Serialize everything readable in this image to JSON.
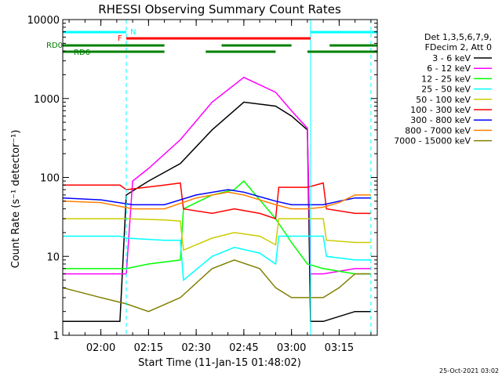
{
  "chart_data": {
    "type": "line",
    "title": "RHESSI Observing Summary Count Rates",
    "xlabel": "Start Time (11-Jan-15 01:48:02)",
    "ylabel": "Count Rate (s⁻¹ detector⁻¹)",
    "x_range": [
      "01:48",
      "03:27"
    ],
    "y_scale": "log",
    "ylim": [
      1,
      10000
    ],
    "y_ticks": [
      1,
      10,
      100,
      1000,
      10000
    ],
    "y_tick_labels": [
      "1",
      "10",
      "100",
      "1000",
      "10000"
    ],
    "x_ticks": [
      "02:00",
      "02:15",
      "02:30",
      "02:45",
      "03:00",
      "03:15"
    ],
    "grid": false,
    "legend_position": "right",
    "legend_header": [
      "Det 1,3,5,6,7,9,",
      "FDecim 2, Att 0"
    ],
    "timestamp": "25-Oct-2021 03:02",
    "series": [
      {
        "name": "3 - 6 keV",
        "color": "#000000",
        "x": [
          "01:48",
          "02:00",
          "02:06",
          "02:08",
          "02:15",
          "02:25",
          "02:35",
          "02:45",
          "02:55",
          "03:00",
          "03:05",
          "03:06",
          "03:10",
          "03:20",
          "03:25"
        ],
        "y": [
          1.5,
          1.5,
          1.5,
          60,
          90,
          150,
          400,
          900,
          800,
          600,
          400,
          1.5,
          1.5,
          2,
          2
        ]
      },
      {
        "name": "6 - 12 keV",
        "color": "#ff00ff",
        "x": [
          "01:48",
          "02:00",
          "02:08",
          "02:10",
          "02:15",
          "02:25",
          "02:35",
          "02:45",
          "02:55",
          "03:00",
          "03:05",
          "03:06",
          "03:10",
          "03:20",
          "03:25"
        ],
        "y": [
          6,
          6,
          6,
          90,
          130,
          300,
          900,
          1850,
          1200,
          700,
          420,
          6,
          6,
          7,
          7
        ]
      },
      {
        "name": "12 - 25 keV",
        "color": "#00ff00",
        "x": [
          "01:48",
          "02:00",
          "02:08",
          "02:15",
          "02:25",
          "02:26",
          "02:35",
          "02:42",
          "02:45",
          "02:55",
          "03:00",
          "03:05",
          "03:10",
          "03:20",
          "03:25"
        ],
        "y": [
          7,
          7,
          7,
          8,
          9,
          40,
          60,
          70,
          90,
          30,
          15,
          8,
          7,
          6,
          6
        ]
      },
      {
        "name": "25 - 50 keV",
        "color": "#00ffff",
        "x": [
          "01:48",
          "02:00",
          "02:06",
          "02:08",
          "02:20",
          "02:25",
          "02:26",
          "02:35",
          "02:42",
          "02:50",
          "02:55",
          "02:56",
          "03:00",
          "03:10",
          "03:11",
          "03:20",
          "03:25"
        ],
        "y": [
          18,
          18,
          18,
          17,
          16,
          16,
          5,
          10,
          13,
          11,
          8,
          18,
          18,
          18,
          10,
          9,
          9
        ]
      },
      {
        "name": "50 - 100 keV",
        "color": "#cccc00",
        "x": [
          "01:48",
          "02:00",
          "02:08",
          "02:20",
          "02:25",
          "02:26",
          "02:35",
          "02:42",
          "02:50",
          "02:55",
          "02:56",
          "03:05",
          "03:10",
          "03:11",
          "03:20",
          "03:25"
        ],
        "y": [
          30,
          30,
          30,
          29,
          28,
          12,
          17,
          20,
          18,
          14,
          30,
          30,
          30,
          16,
          15,
          15
        ]
      },
      {
        "name": "100 - 300 keV",
        "color": "#ff0000",
        "x": [
          "01:48",
          "02:00",
          "02:06",
          "02:08",
          "02:20",
          "02:25",
          "02:26",
          "02:35",
          "02:42",
          "02:50",
          "02:55",
          "02:56",
          "03:05",
          "03:10",
          "03:11",
          "03:20",
          "03:25"
        ],
        "y": [
          80,
          80,
          80,
          70,
          80,
          85,
          40,
          35,
          40,
          35,
          30,
          75,
          75,
          85,
          40,
          35,
          35
        ]
      },
      {
        "name": "300 - 800 keV",
        "color": "#0000ff",
        "x": [
          "01:48",
          "02:00",
          "02:10",
          "02:20",
          "02:30",
          "02:40",
          "02:45",
          "02:55",
          "03:00",
          "03:05",
          "03:10",
          "03:15",
          "03:20",
          "03:25"
        ],
        "y": [
          55,
          52,
          45,
          45,
          60,
          70,
          65,
          50,
          45,
          45,
          45,
          50,
          55,
          55
        ]
      },
      {
        "name": "800 - 7000 keV",
        "color": "#ff8000",
        "x": [
          "01:48",
          "02:00",
          "02:10",
          "02:20",
          "02:30",
          "02:40",
          "02:45",
          "02:55",
          "03:00",
          "03:05",
          "03:10",
          "03:15",
          "03:20",
          "03:25"
        ],
        "y": [
          50,
          48,
          40,
          40,
          55,
          65,
          60,
          45,
          40,
          40,
          42,
          48,
          60,
          60
        ]
      },
      {
        "name": "7000 - 15000 keV",
        "color": "#808000",
        "x": [
          "01:48",
          "02:00",
          "02:08",
          "02:15",
          "02:25",
          "02:35",
          "02:42",
          "02:50",
          "02:55",
          "03:00",
          "03:05",
          "03:10",
          "03:15",
          "03:20",
          "03:25"
        ],
        "y": [
          4,
          3,
          2.5,
          2,
          3,
          7,
          9,
          7,
          4,
          3,
          3,
          3,
          4,
          6,
          6
        ]
      }
    ],
    "state_bars": [
      {
        "label": "N",
        "color": "#00ffff",
        "segments": [
          [
            "01:48",
            "02:08"
          ],
          [
            "03:06",
            "03:27"
          ]
        ]
      },
      {
        "label": "F",
        "color": "#ff0000",
        "segments": [
          [
            "02:08",
            "03:06"
          ]
        ]
      },
      {
        "label": "RD0",
        "color": "#008000",
        "segments": [
          [
            "01:48",
            "02:20"
          ],
          [
            "02:38",
            "03:00"
          ],
          [
            "03:12",
            "03:27"
          ]
        ]
      },
      {
        "label": "RD6",
        "color": "#008000",
        "segments": [
          [
            "01:48",
            "02:20"
          ],
          [
            "02:33",
            "02:55"
          ],
          [
            "03:05",
            "03:27"
          ]
        ]
      }
    ],
    "vlines": [
      {
        "time": "02:08",
        "color": "#00ffff",
        "style": "dashed"
      },
      {
        "time": "03:06",
        "color": "#00ffff",
        "style": "solid"
      },
      {
        "time": "03:25",
        "color": "#00ffff",
        "style": "dashed"
      }
    ]
  }
}
